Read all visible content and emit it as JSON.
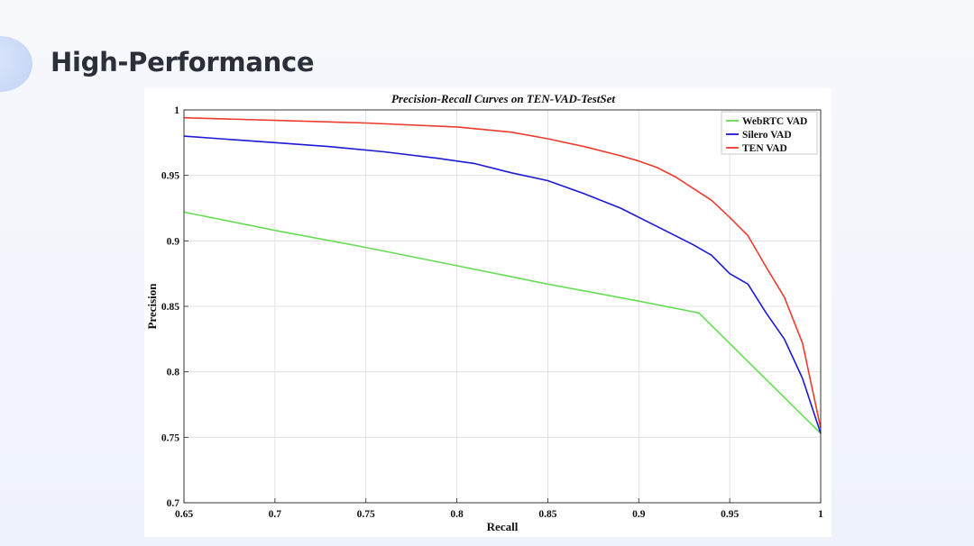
{
  "slide": {
    "title": "High-Performance"
  },
  "chart_data": {
    "type": "line",
    "title": "Precision-Recall Curves on TEN-VAD-TestSet",
    "xlabel": "Recall",
    "ylabel": "Precision",
    "xlim": [
      0.65,
      1
    ],
    "ylim": [
      0.7,
      1
    ],
    "xticks": [
      "0.65",
      "0.7",
      "0.75",
      "0.8",
      "0.85",
      "0.9",
      "0.95",
      "1"
    ],
    "yticks": [
      "0.7",
      "0.75",
      "0.8",
      "0.85",
      "0.9",
      "0.95",
      "1"
    ],
    "grid": true,
    "legend_position": "top-right",
    "series": [
      {
        "name": "WebRTC VAD",
        "color": "#66dd55",
        "x": [
          0.65,
          0.7,
          0.75,
          0.8,
          0.85,
          0.9,
          0.933,
          1.0
        ],
        "y": [
          0.922,
          0.908,
          0.895,
          0.881,
          0.867,
          0.854,
          0.845,
          0.753
        ]
      },
      {
        "name": "Silero VAD",
        "color": "#1a1ad6",
        "x": [
          0.65,
          0.67,
          0.7,
          0.73,
          0.76,
          0.79,
          0.81,
          0.83,
          0.85,
          0.87,
          0.89,
          0.91,
          0.93,
          0.94,
          0.95,
          0.96,
          0.97,
          0.98,
          0.99,
          1.0
        ],
        "y": [
          0.98,
          0.978,
          0.975,
          0.972,
          0.968,
          0.963,
          0.959,
          0.952,
          0.946,
          0.936,
          0.925,
          0.911,
          0.897,
          0.889,
          0.875,
          0.867,
          0.845,
          0.825,
          0.795,
          0.753
        ]
      },
      {
        "name": "TEN VAD",
        "color": "#ee3b2e",
        "x": [
          0.65,
          0.7,
          0.75,
          0.8,
          0.83,
          0.85,
          0.87,
          0.89,
          0.9,
          0.91,
          0.92,
          0.93,
          0.94,
          0.95,
          0.96,
          0.97,
          0.98,
          0.99,
          1.0
        ],
        "y": [
          0.994,
          0.992,
          0.99,
          0.987,
          0.983,
          0.978,
          0.972,
          0.965,
          0.961,
          0.956,
          0.949,
          0.94,
          0.931,
          0.918,
          0.904,
          0.88,
          0.857,
          0.822,
          0.757
        ]
      }
    ]
  }
}
